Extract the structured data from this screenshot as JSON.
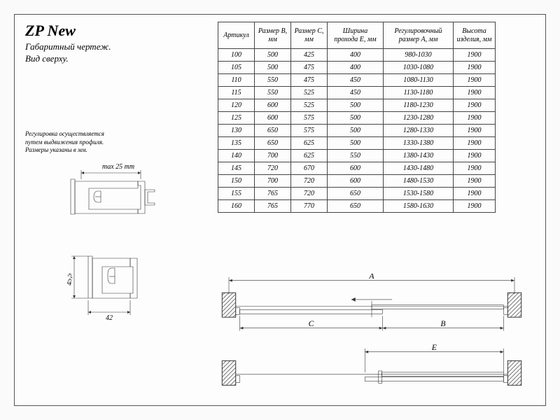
{
  "title": "ZP New",
  "subtitle_line1": "Габаритный чертеж.",
  "subtitle_line2": "Вид сверху.",
  "note_line1": "Регулировка осуществляется",
  "note_line2": "путем выдвижения профиля.",
  "note_line3": "Размеры указаны в мм.",
  "profile1": {
    "label": "max 25 mm"
  },
  "profile2": {
    "height_label": "45,5",
    "width_label": "42"
  },
  "table": {
    "headers": {
      "art": "Артикул",
      "b": "Размер B, мм",
      "c": "Размер C, мм",
      "e": "Ширина прохода E, мм",
      "a": "Регулировочный размер A, мм",
      "h": "Высота изделия, мм"
    },
    "rows": [
      {
        "art": "100",
        "b": "500",
        "c": "425",
        "e": "400",
        "a": "980-1030",
        "h": "1900"
      },
      {
        "art": "105",
        "b": "500",
        "c": "475",
        "e": "400",
        "a": "1030-1080",
        "h": "1900"
      },
      {
        "art": "110",
        "b": "550",
        "c": "475",
        "e": "450",
        "a": "1080-1130",
        "h": "1900"
      },
      {
        "art": "115",
        "b": "550",
        "c": "525",
        "e": "450",
        "a": "1130-1180",
        "h": "1900"
      },
      {
        "art": "120",
        "b": "600",
        "c": "525",
        "e": "500",
        "a": "1180-1230",
        "h": "1900"
      },
      {
        "art": "125",
        "b": "600",
        "c": "575",
        "e": "500",
        "a": "1230-1280",
        "h": "1900"
      },
      {
        "art": "130",
        "b": "650",
        "c": "575",
        "e": "500",
        "a": "1280-1330",
        "h": "1900"
      },
      {
        "art": "135",
        "b": "650",
        "c": "625",
        "e": "500",
        "a": "1330-1380",
        "h": "1900"
      },
      {
        "art": "140",
        "b": "700",
        "c": "625",
        "e": "550",
        "a": "1380-1430",
        "h": "1900"
      },
      {
        "art": "145",
        "b": "720",
        "c": "670",
        "e": "600",
        "a": "1430-1480",
        "h": "1900"
      },
      {
        "art": "150",
        "b": "700",
        "c": "720",
        "e": "600",
        "a": "1480-1530",
        "h": "1900"
      },
      {
        "art": "155",
        "b": "765",
        "c": "720",
        "e": "650",
        "a": "1530-1580",
        "h": "1900"
      },
      {
        "art": "160",
        "b": "765",
        "c": "770",
        "e": "650",
        "a": "1580-1630",
        "h": "1900"
      }
    ]
  },
  "dims": {
    "A": "A",
    "B": "B",
    "C": "C",
    "E": "E"
  },
  "styling": {
    "background_color": "#fdfdfd",
    "line_color": "#333333",
    "font_family": "Georgia, serif (italic)",
    "title_fontsize": 22,
    "body_fontsize": 10,
    "table_border_color": "#444444",
    "hatch_spacing": 5
  }
}
